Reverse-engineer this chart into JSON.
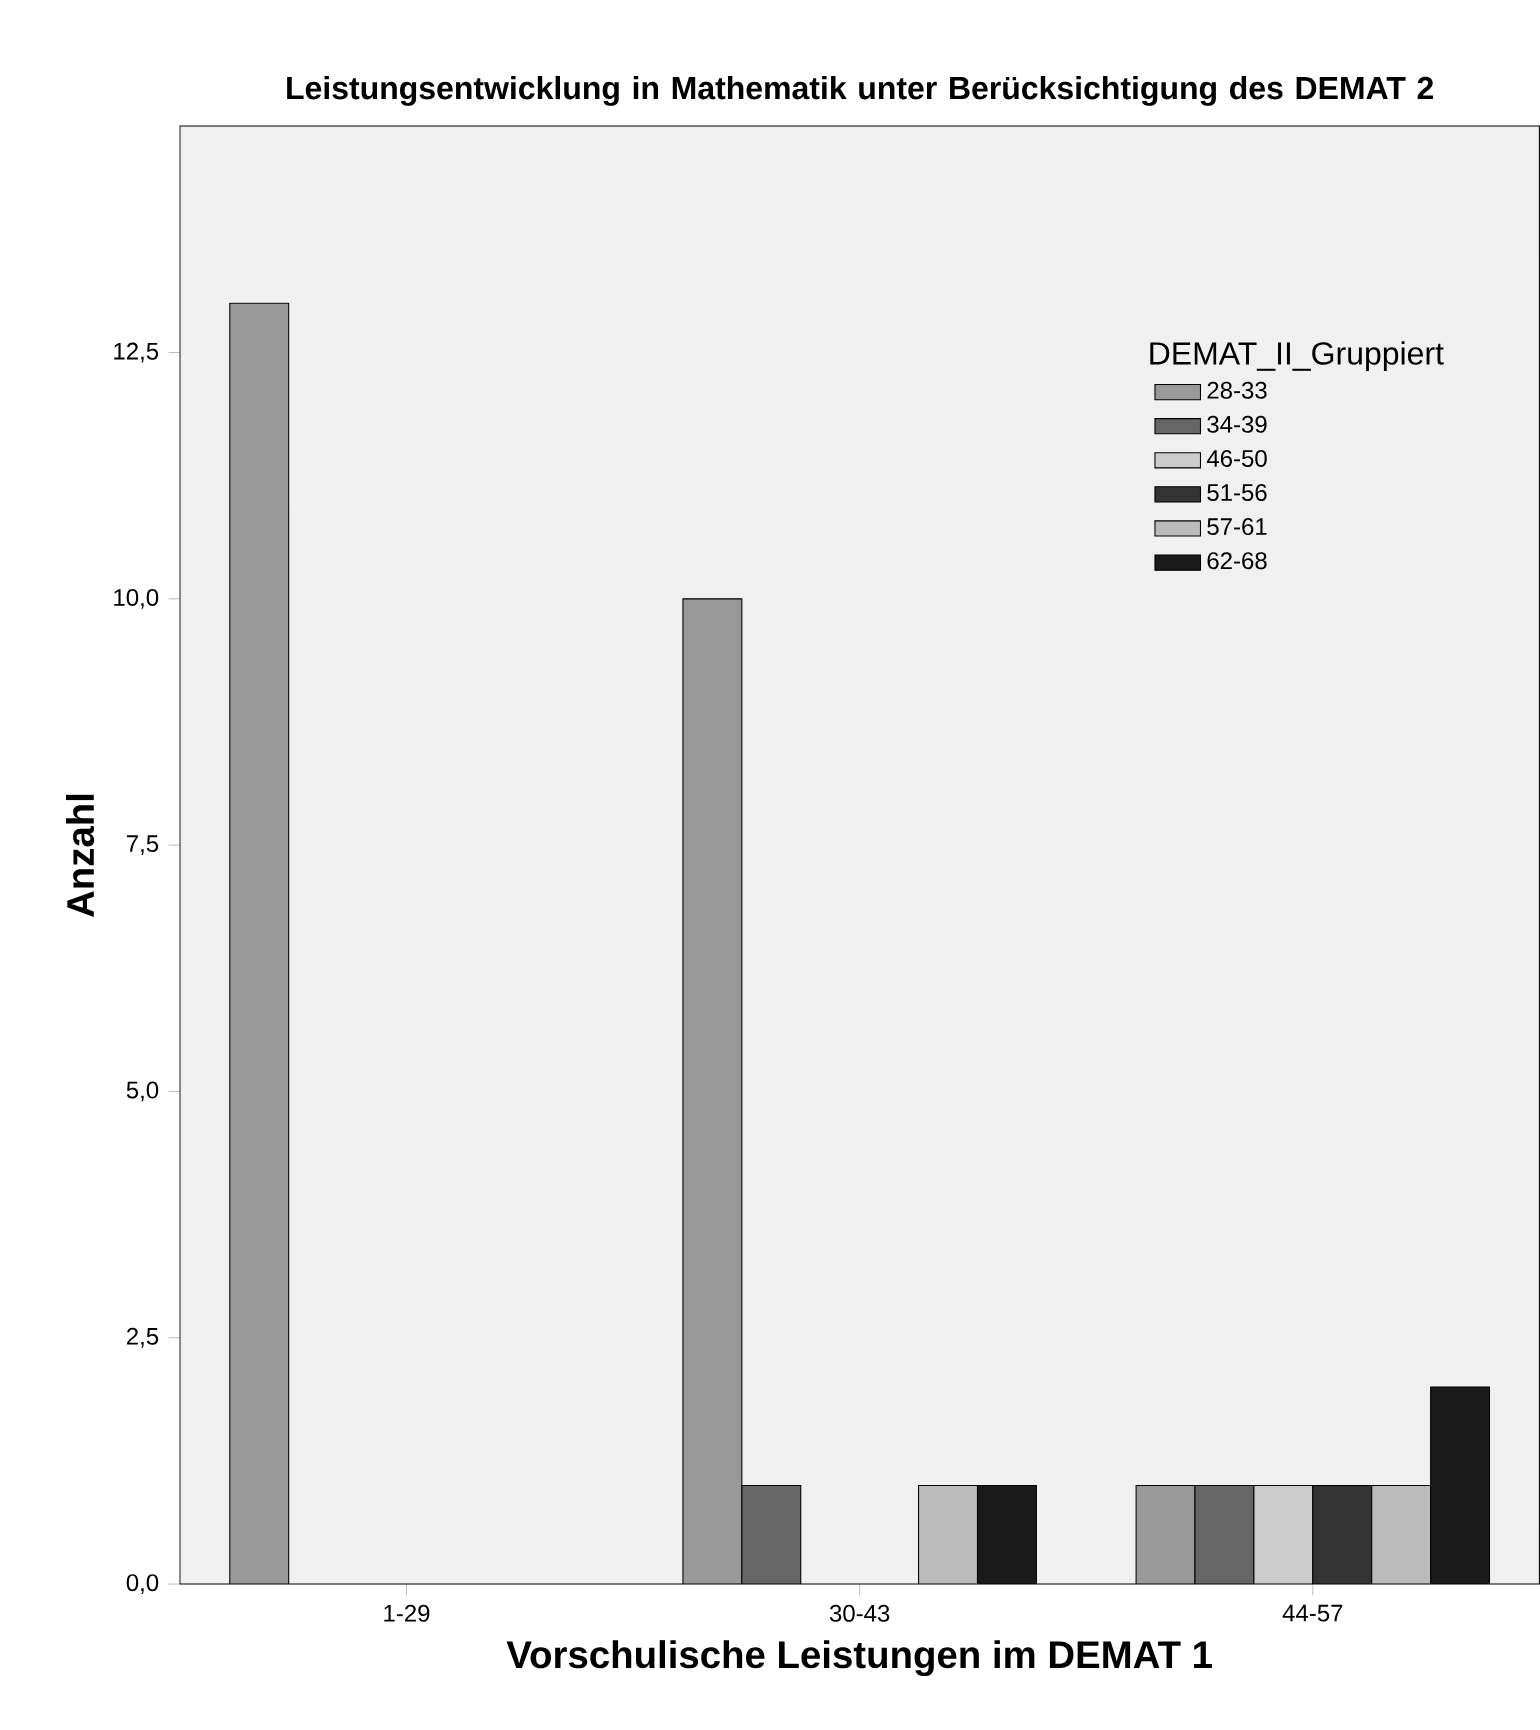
{
  "chart_data": {
    "type": "bar",
    "title": "Leistungsentwicklung in Mathematik unter Berücksichtigung des DEMAT 2",
    "xlabel": "Vorschulische Leistungen im DEMAT 1",
    "ylabel": "Anzahl",
    "legend_title": "DEMAT_II_Gruppiert",
    "legend": "top right",
    "categories": [
      "1-29",
      "30-43",
      "44-57"
    ],
    "series": [
      {
        "name": "28-33",
        "color": "#999999",
        "values": [
          13,
          10,
          1
        ]
      },
      {
        "name": "34-39",
        "color": "#666666",
        "values": [
          null,
          1,
          1
        ]
      },
      {
        "name": "46-50",
        "color": "#cccccc",
        "values": [
          null,
          null,
          1
        ]
      },
      {
        "name": "51-56",
        "color": "#333333",
        "values": [
          null,
          null,
          1
        ]
      },
      {
        "name": "57-61",
        "color": "#bbbbbb",
        "values": [
          null,
          1,
          1
        ]
      },
      {
        "name": "62-68",
        "color": "#1a1a1a",
        "values": [
          null,
          1,
          2
        ]
      }
    ],
    "ylim": [
      0,
      14.8
    ],
    "yticks": [
      {
        "value": 0,
        "label": "0,0"
      },
      {
        "value": 2.5,
        "label": "2,5"
      },
      {
        "value": 5,
        "label": "5,0"
      },
      {
        "value": 7.5,
        "label": "7,5"
      },
      {
        "value": 10,
        "label": "10,0"
      },
      {
        "value": 12.5,
        "label": "12,5"
      }
    ]
  }
}
